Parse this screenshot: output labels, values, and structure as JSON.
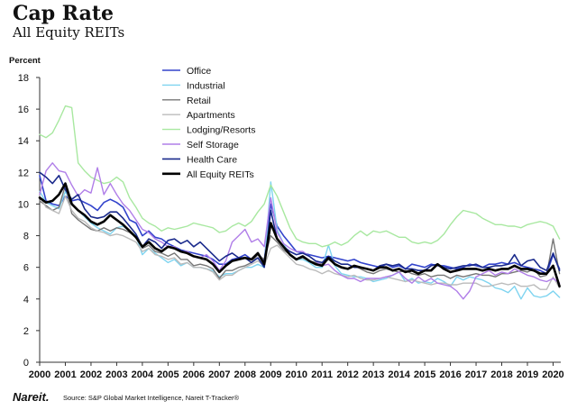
{
  "header": {
    "title": "Cap Rate",
    "subtitle": "All Equity REITs"
  },
  "footer": {
    "logo": "Nareit.",
    "source": "Source: S&P Global Market Intelligence, Nareit T-Tracker®"
  },
  "chart_data": {
    "type": "line",
    "title": "Cap Rate",
    "subtitle": "All Equity REITs",
    "ylabel": "Percent",
    "xlabel": "",
    "ylim": [
      0,
      18
    ],
    "xlim": [
      2000,
      2020.3
    ],
    "yticks": [
      0,
      2,
      4,
      6,
      8,
      10,
      12,
      14,
      16,
      18
    ],
    "xticks": [
      "2000",
      "2001",
      "2002",
      "2003",
      "2004",
      "2005",
      "2006",
      "2007",
      "2008",
      "2009",
      "2010",
      "2011",
      "2012",
      "2013",
      "2014",
      "2015",
      "2016",
      "2017",
      "2018",
      "2019",
      "2020"
    ],
    "grid": false,
    "legend": "top-center",
    "x": [
      2000.0,
      2000.25,
      2000.5,
      2000.75,
      2001.0,
      2001.25,
      2001.5,
      2001.75,
      2002.0,
      2002.25,
      2002.5,
      2002.75,
      2003.0,
      2003.25,
      2003.5,
      2003.75,
      2004.0,
      2004.25,
      2004.5,
      2004.75,
      2005.0,
      2005.25,
      2005.5,
      2005.75,
      2006.0,
      2006.25,
      2006.5,
      2006.75,
      2007.0,
      2007.25,
      2007.5,
      2007.75,
      2008.0,
      2008.25,
      2008.5,
      2008.75,
      2009.0,
      2009.25,
      2009.5,
      2009.75,
      2010.0,
      2010.25,
      2010.5,
      2010.75,
      2011.0,
      2011.25,
      2011.5,
      2011.75,
      2012.0,
      2012.25,
      2012.5,
      2012.75,
      2013.0,
      2013.25,
      2013.5,
      2013.75,
      2014.0,
      2014.25,
      2014.5,
      2014.75,
      2015.0,
      2015.25,
      2015.5,
      2015.75,
      2016.0,
      2016.25,
      2016.5,
      2016.75,
      2017.0,
      2017.25,
      2017.5,
      2017.75,
      2018.0,
      2018.25,
      2018.5,
      2018.75,
      2019.0,
      2019.25,
      2019.5,
      2019.75,
      2020.0,
      2020.25
    ],
    "series": [
      {
        "name": "Office",
        "color": "#3344cc",
        "width": 1.6,
        "values": [
          11.8,
          10.2,
          10.0,
          9.9,
          10.5,
          10.2,
          10.3,
          10.1,
          9.9,
          9.6,
          10.1,
          10.3,
          10.1,
          9.8,
          9.0,
          8.8,
          8.0,
          8.3,
          7.9,
          7.8,
          7.5,
          7.3,
          7.1,
          7.0,
          6.9,
          6.8,
          6.7,
          6.5,
          6.2,
          6.2,
          6.5,
          6.6,
          6.8,
          6.5,
          6.9,
          6.4,
          10.0,
          8.6,
          8.0,
          7.5,
          7.0,
          6.9,
          6.8,
          6.7,
          6.6,
          6.7,
          6.6,
          6.5,
          6.4,
          6.5,
          6.3,
          6.2,
          6.1,
          6.0,
          6.2,
          6.0,
          6.1,
          5.9,
          6.2,
          6.1,
          6.0,
          6.2,
          6.1,
          6.1,
          6.0,
          5.9,
          6.0,
          6.2,
          6.1,
          6.0,
          6.2,
          6.2,
          6.3,
          6.2,
          6.3,
          6.1,
          6.0,
          5.9,
          5.8,
          5.6,
          6.8,
          5.9
        ]
      },
      {
        "name": "Industrial",
        "color": "#7fd4f0",
        "width": 1.4,
        "values": [
          10.8,
          10.1,
          9.9,
          9.7,
          10.8,
          10.0,
          9.6,
          9.2,
          8.8,
          8.5,
          8.3,
          8.1,
          8.5,
          8.6,
          8.3,
          8.0,
          6.8,
          7.2,
          6.9,
          6.6,
          6.3,
          6.5,
          6.1,
          6.3,
          6.0,
          6.0,
          5.9,
          5.8,
          5.4,
          5.6,
          5.6,
          5.8,
          6.0,
          6.0,
          6.2,
          6.0,
          11.4,
          8.4,
          7.5,
          6.8,
          6.5,
          6.5,
          6.3,
          6.0,
          6.0,
          7.4,
          6.1,
          5.6,
          5.5,
          5.4,
          5.4,
          5.3,
          5.1,
          5.2,
          5.3,
          5.5,
          5.7,
          5.1,
          5.3,
          5.0,
          5.1,
          5.0,
          5.3,
          5.1,
          4.8,
          5.4,
          5.2,
          5.4,
          5.3,
          5.2,
          5.0,
          4.7,
          4.6,
          4.4,
          4.8,
          4.0,
          4.7,
          4.2,
          4.1,
          4.2,
          4.5,
          4.1
        ]
      },
      {
        "name": "Retail",
        "color": "#777777",
        "width": 1.4,
        "values": [
          10.2,
          9.9,
          9.6,
          9.8,
          11.2,
          9.4,
          9.0,
          8.7,
          8.4,
          8.3,
          8.5,
          8.3,
          8.5,
          8.4,
          8.2,
          7.9,
          7.2,
          7.4,
          7.0,
          6.9,
          6.7,
          6.9,
          6.5,
          6.5,
          6.1,
          6.2,
          6.1,
          5.9,
          5.3,
          5.8,
          5.8,
          6.0,
          6.1,
          6.3,
          6.8,
          6.5,
          8.0,
          7.6,
          7.1,
          6.8,
          6.5,
          6.6,
          6.4,
          6.3,
          6.2,
          6.5,
          6.2,
          6.0,
          5.9,
          6.1,
          5.9,
          5.7,
          5.6,
          5.8,
          5.9,
          5.8,
          5.7,
          5.8,
          5.6,
          5.5,
          5.6,
          5.4,
          5.5,
          5.5,
          5.3,
          5.5,
          5.4,
          5.5,
          5.6,
          5.5,
          5.5,
          5.4,
          5.6,
          5.6,
          5.7,
          5.8,
          5.7,
          5.9,
          5.4,
          5.5,
          7.8,
          5.6
        ]
      },
      {
        "name": "Apartments",
        "color": "#bbbbbb",
        "width": 1.4,
        "values": [
          10.5,
          9.8,
          9.6,
          9.4,
          10.5,
          9.6,
          9.1,
          8.9,
          8.5,
          8.3,
          8.2,
          8.0,
          8.1,
          8.0,
          7.8,
          7.6,
          7.0,
          7.2,
          6.8,
          6.7,
          6.5,
          6.6,
          6.2,
          6.3,
          6.0,
          6.0,
          5.9,
          5.7,
          5.2,
          5.5,
          5.5,
          5.8,
          6.0,
          6.2,
          6.4,
          6.1,
          7.2,
          7.4,
          7.0,
          6.6,
          6.2,
          6.1,
          5.9,
          5.8,
          5.6,
          5.8,
          5.6,
          5.5,
          5.4,
          5.5,
          5.3,
          5.2,
          5.2,
          5.3,
          5.4,
          5.3,
          5.2,
          5.1,
          5.2,
          5.1,
          5.0,
          4.9,
          5.0,
          5.0,
          4.9,
          4.9,
          5.0,
          5.0,
          5.0,
          4.8,
          4.8,
          4.9,
          5.0,
          4.9,
          5.0,
          4.8,
          4.8,
          4.9,
          4.6,
          4.6,
          5.4,
          4.7
        ]
      },
      {
        "name": "Lodging/Resorts",
        "color": "#a8e8a0",
        "width": 1.4,
        "values": [
          14.4,
          14.2,
          14.5,
          15.3,
          16.2,
          16.1,
          12.6,
          12.1,
          11.7,
          11.5,
          11.3,
          11.4,
          11.7,
          11.4,
          10.4,
          9.8,
          9.1,
          8.8,
          8.6,
          8.3,
          8.5,
          8.4,
          8.5,
          8.6,
          8.8,
          8.7,
          8.6,
          8.5,
          8.2,
          8.3,
          8.6,
          8.8,
          8.6,
          8.9,
          9.5,
          10.0,
          11.2,
          10.5,
          9.5,
          8.5,
          7.8,
          7.6,
          7.5,
          7.5,
          7.3,
          7.4,
          7.6,
          7.4,
          7.6,
          8.0,
          8.3,
          8.0,
          8.3,
          8.2,
          8.3,
          8.1,
          7.9,
          7.9,
          7.6,
          7.5,
          7.6,
          7.5,
          7.7,
          8.1,
          8.7,
          9.2,
          9.6,
          9.5,
          9.4,
          9.1,
          8.9,
          8.7,
          8.7,
          8.6,
          8.6,
          8.5,
          8.7,
          8.8,
          8.9,
          8.8,
          8.6,
          7.8
        ]
      },
      {
        "name": "Self Storage",
        "color": "#b07ee8",
        "width": 1.4,
        "values": [
          10.6,
          12.1,
          12.6,
          12.1,
          12.0,
          11.2,
          10.5,
          10.9,
          10.7,
          12.3,
          10.6,
          11.3,
          10.6,
          10.0,
          9.6,
          9.0,
          8.4,
          8.2,
          7.8,
          7.6,
          7.3,
          7.3,
          7.0,
          7.0,
          6.7,
          6.6,
          6.8,
          6.4,
          5.8,
          6.4,
          7.6,
          8.0,
          8.4,
          7.6,
          7.8,
          7.3,
          10.4,
          8.2,
          7.5,
          7.2,
          7.0,
          7.0,
          6.7,
          6.4,
          6.1,
          6.2,
          5.8,
          5.5,
          5.3,
          5.3,
          5.1,
          5.3,
          5.3,
          5.3,
          5.4,
          5.5,
          5.7,
          5.3,
          5.0,
          5.4,
          5.1,
          5.3,
          5.0,
          4.9,
          4.8,
          4.5,
          4.0,
          4.5,
          5.4,
          5.6,
          5.8,
          5.5,
          5.7,
          5.6,
          5.9,
          5.7,
          5.5,
          5.4,
          5.2,
          5.1,
          5.3,
          5.0
        ]
      },
      {
        "name": "Health Care",
        "color": "#1a2a8c",
        "width": 1.6,
        "values": [
          12.0,
          11.7,
          11.3,
          11.8,
          10.9,
          10.3,
          10.6,
          9.7,
          9.2,
          9.1,
          9.2,
          9.5,
          9.5,
          9.1,
          8.6,
          8.1,
          7.3,
          7.8,
          7.6,
          7.2,
          7.7,
          7.8,
          7.5,
          7.7,
          7.3,
          7.6,
          7.2,
          6.8,
          6.4,
          6.7,
          6.9,
          6.6,
          6.6,
          6.3,
          6.6,
          6.0,
          9.6,
          7.8,
          7.3,
          7.0,
          6.8,
          6.9,
          6.7,
          6.4,
          6.3,
          6.7,
          6.4,
          6.2,
          6.2,
          6.0,
          6.0,
          5.9,
          5.8,
          6.1,
          6.2,
          6.1,
          6.2,
          5.9,
          5.9,
          5.8,
          5.8,
          6.1,
          6.2,
          6.0,
          5.9,
          6.0,
          6.1,
          6.1,
          6.2,
          6.0,
          6.0,
          6.1,
          6.1,
          6.2,
          6.8,
          6.1,
          6.4,
          6.5,
          6.0,
          5.8,
          6.9,
          5.8
        ]
      },
      {
        "name": "All Equity REITs",
        "color": "#000000",
        "width": 2.6,
        "values": [
          10.4,
          10.1,
          10.2,
          10.6,
          11.3,
          10.0,
          9.6,
          9.3,
          8.9,
          8.7,
          8.9,
          9.3,
          9.0,
          8.7,
          8.3,
          7.9,
          7.3,
          7.6,
          7.2,
          7.0,
          7.3,
          7.2,
          7.0,
          6.9,
          6.7,
          6.6,
          6.5,
          6.2,
          5.7,
          6.1,
          6.4,
          6.5,
          6.6,
          6.5,
          6.9,
          6.2,
          8.8,
          7.8,
          7.3,
          6.8,
          6.5,
          6.7,
          6.4,
          6.2,
          6.1,
          6.6,
          6.2,
          6.0,
          5.9,
          6.1,
          6.0,
          5.9,
          5.8,
          6.0,
          6.0,
          5.8,
          5.9,
          5.7,
          5.8,
          5.6,
          5.8,
          5.8,
          6.2,
          5.9,
          5.7,
          5.8,
          5.9,
          5.9,
          5.9,
          5.8,
          5.9,
          5.8,
          5.9,
          5.9,
          6.1,
          5.9,
          5.9,
          5.8,
          5.6,
          5.6,
          6.1,
          4.8
        ]
      }
    ]
  }
}
